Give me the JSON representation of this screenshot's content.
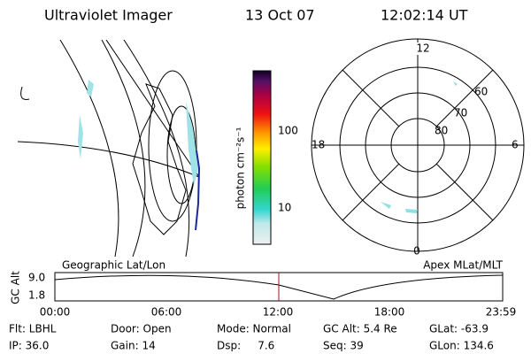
{
  "header": {
    "title": "Ultraviolet Imager",
    "date": "13 Oct 07",
    "time": "12:02:14 UT"
  },
  "colorbar": {
    "unit": "photon cm⁻²s⁻¹",
    "labels": [
      "100",
      "10"
    ]
  },
  "polar": {
    "mlt_labels": {
      "top": "12",
      "left": "18",
      "right": "6",
      "bottom": "0"
    },
    "lat_labels": [
      "60",
      "70",
      "80"
    ]
  },
  "panels": {
    "left": "Geographic Lat/Lon",
    "right": "Apex MLat/MLT"
  },
  "altitude_plot": {
    "ylabel": "GC Alt",
    "yticks": [
      "9.0",
      "1.8"
    ],
    "xticks": [
      "00:00",
      "06:00",
      "12:00",
      "18:00",
      "23:59"
    ]
  },
  "status": {
    "row1": [
      "Flt: LBHL",
      "Door: Open",
      "Mode: Normal",
      "GC Alt: 5.4 Re",
      "GLat: -63.9"
    ],
    "row2": [
      "IP: 36.0",
      "Gain: 14",
      "Dsp:     7.6",
      "Seq: 39",
      "GLon: 134.6"
    ]
  }
}
